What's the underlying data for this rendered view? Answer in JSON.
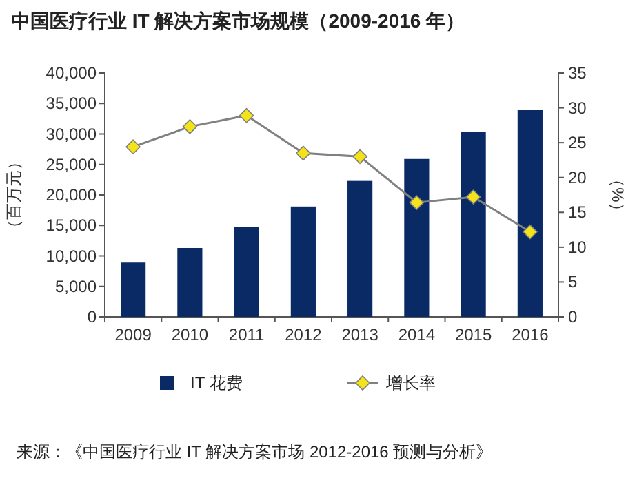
{
  "chart_data": {
    "type": "bar",
    "title": "中国医疗行业 IT 解决方案市场规模（2009-2016 年）",
    "categories": [
      "2009",
      "2010",
      "2011",
      "2012",
      "2013",
      "2014",
      "2015",
      "2016"
    ],
    "series": [
      {
        "name": "IT 花费",
        "color": "#0a2a66",
        "values": [
          8900,
          11300,
          14700,
          18100,
          22300,
          25900,
          30300,
          34000
        ]
      },
      {
        "name": "增长率",
        "type": "line",
        "axis": "y2",
        "color": "#808080",
        "marker": "diamond",
        "values": [
          24.4,
          27.3,
          28.9,
          23.5,
          23.0,
          16.4,
          17.2,
          12.2
        ]
      }
    ],
    "ylabel": "（百万元）",
    "y2label": "（%）",
    "ylim": [
      0,
      40000
    ],
    "yticks": [
      {
        "value": 0,
        "label": "0"
      },
      {
        "value": 5000,
        "label": "5,000"
      },
      {
        "value": 10000,
        "label": "10,000"
      },
      {
        "value": 15000,
        "label": "15,000"
      },
      {
        "value": 20000,
        "label": "20,000"
      },
      {
        "value": 25000,
        "label": "25,000"
      },
      {
        "value": 30000,
        "label": "30,000"
      },
      {
        "value": 35000,
        "label": "35,000"
      },
      {
        "value": 40000,
        "label": "40,000"
      }
    ],
    "y2lim": [
      0,
      35
    ],
    "y2ticks": [
      0,
      5,
      10,
      15,
      20,
      25,
      30,
      35
    ],
    "legend": "bottom",
    "grid": false,
    "annotations": [
      "来源：《中国医疗行业 IT 解决方案市场 2012-2016 预测与分析》"
    ]
  }
}
